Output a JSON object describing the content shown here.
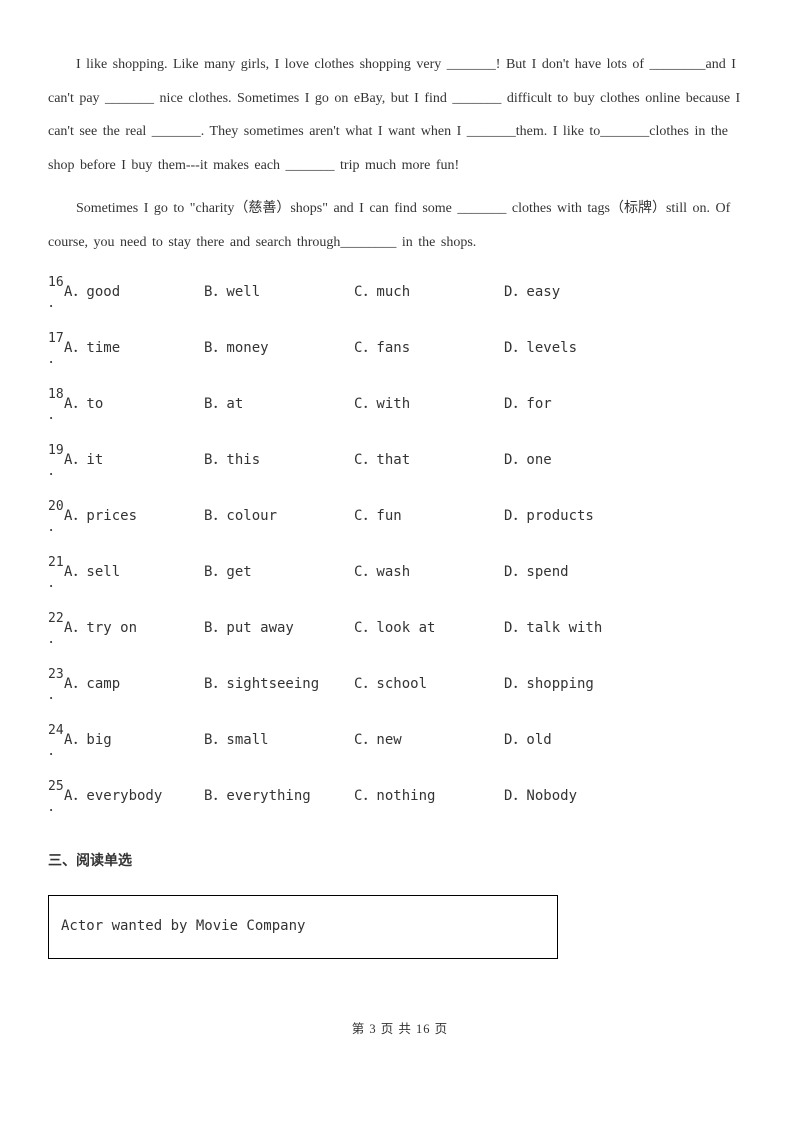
{
  "passage": [
    "I like shopping. Like many girls, I love clothes shopping very _______! But I don't have lots of ________and I can't pay _______ nice clothes. Sometimes I go on eBay, but I find _______ difficult to buy clothes online because I can't see the real _______. They sometimes aren't what I want when I _______them. I like to_______clothes in the shop before I buy them---it makes each _______ trip much more fun!",
    "Sometimes I go to \"charity（慈善）shops\" and I can find some _______ clothes with tags（标牌）still on. Of course, you need to stay there and search through________ in the shops."
  ],
  "questions": [
    {
      "num": "16",
      "opts": [
        "A．good",
        "B．well",
        "C．much",
        "D．easy"
      ]
    },
    {
      "num": "17",
      "opts": [
        "A．time",
        "B．money",
        "C．fans",
        "D．levels"
      ]
    },
    {
      "num": "18",
      "opts": [
        "A．to",
        "B．at",
        "C．with",
        "D．for"
      ]
    },
    {
      "num": "19",
      "opts": [
        "A．it",
        "B．this",
        "C．that",
        "D．one"
      ]
    },
    {
      "num": "20",
      "opts": [
        "A．prices",
        "B．colour",
        "C．fun",
        "D．products"
      ]
    },
    {
      "num": "21",
      "opts": [
        "A．sell",
        "B．get",
        "C．wash",
        "D．spend"
      ]
    },
    {
      "num": "22",
      "opts": [
        "A．try on",
        "B．put away",
        "C．look at",
        "D．talk with"
      ]
    },
    {
      "num": "23",
      "opts": [
        "A．camp",
        "B．sightseeing",
        "C．school",
        "D．shopping"
      ]
    },
    {
      "num": "24",
      "opts": [
        "A．big",
        "B．small",
        "C．new",
        "D．old"
      ]
    },
    {
      "num": "25",
      "opts": [
        "A．everybody",
        "B．everything",
        "C．nothing",
        "D．Nobody"
      ]
    }
  ],
  "section3_heading": "三、阅读单选",
  "boxed_text": "Actor wanted by Movie Company",
  "footer": "第 3 页 共 16 页"
}
